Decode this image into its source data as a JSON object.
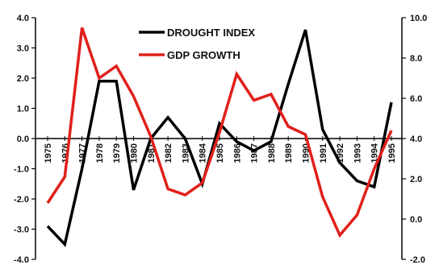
{
  "chart_data": {
    "type": "line",
    "title": "",
    "xlabel": "",
    "ylabel": "",
    "categories": [
      "1975",
      "1976",
      "1977",
      "1978",
      "1979",
      "1980",
      "1981",
      "1982",
      "1983",
      "1984",
      "1985",
      "1986",
      "1987",
      "1988",
      "1989",
      "1990",
      "1991",
      "1992",
      "1993",
      "1994",
      "1995"
    ],
    "left_axis": {
      "range": [
        -4.0,
        4.0
      ],
      "ticks": [
        "4.0",
        "3.0",
        "2.0",
        "1.0",
        "0.0",
        "-1.0",
        "-2.0",
        "-3.0",
        "-4.0"
      ]
    },
    "right_axis": {
      "range": [
        -2.0,
        10.0
      ],
      "ticks": [
        "10.0",
        "8.0",
        "6.0",
        "4.0",
        "2.0",
        "0.0",
        "-2.0"
      ]
    },
    "grid": false,
    "legend": {
      "position": "top-center"
    },
    "series": [
      {
        "name": "DROUGHT INDEX",
        "axis": "left",
        "color": "#000000",
        "values": [
          -2.9,
          -3.5,
          -1.0,
          1.9,
          1.9,
          -1.7,
          0.0,
          0.7,
          0.0,
          -1.5,
          0.5,
          -0.1,
          -0.4,
          -0.1,
          1.8,
          3.6,
          0.3,
          -0.8,
          -1.4,
          -1.6,
          1.2
        ]
      },
      {
        "name": "GDP GROWTH",
        "axis": "right",
        "color": "#e0201b",
        "values": [
          0.8,
          2.1,
          9.5,
          7.0,
          7.6,
          6.1,
          4.1,
          1.5,
          1.2,
          1.8,
          4.3,
          7.2,
          5.9,
          6.2,
          4.6,
          4.2,
          1.1,
          -0.8,
          0.2,
          2.5,
          4.4
        ]
      }
    ]
  }
}
